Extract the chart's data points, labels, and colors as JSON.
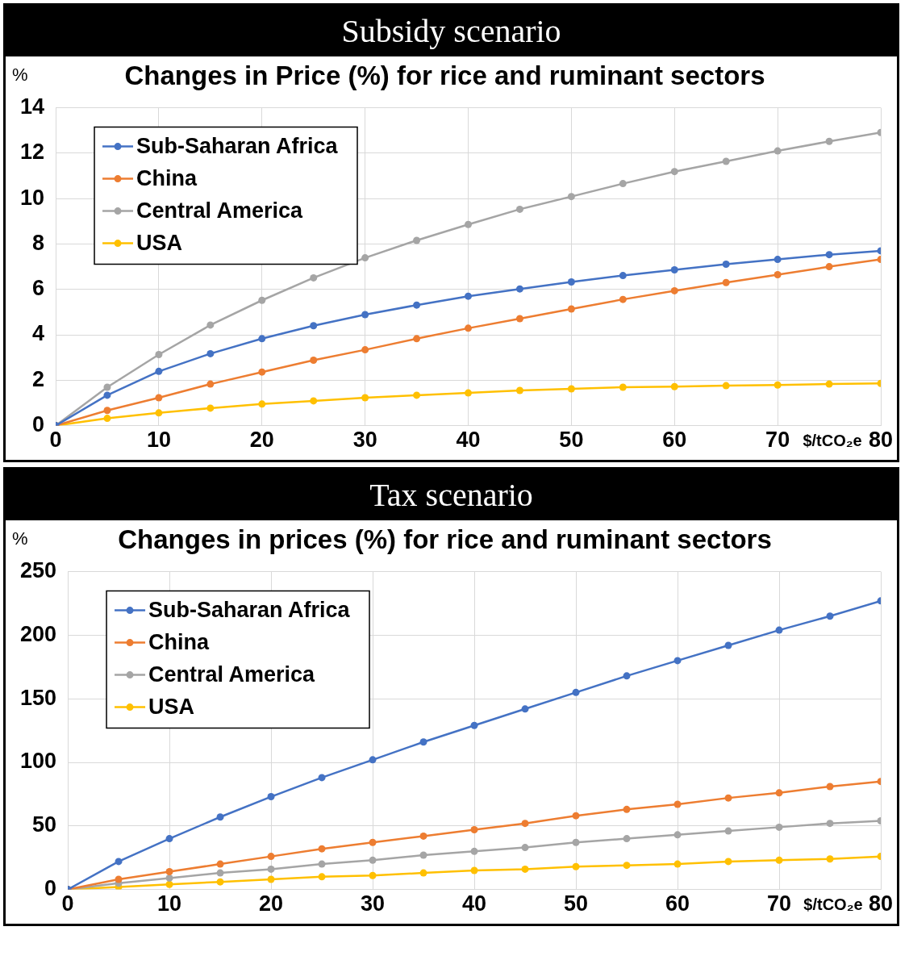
{
  "chart_data": [
    {
      "type": "line",
      "title": "Subsidy scenario",
      "subtitle": "Changes in Price (%) for rice and ruminant sectors",
      "xlabel": "$/tCO₂e",
      "ylabel": "%",
      "x": [
        0,
        5,
        10,
        15,
        20,
        25,
        30,
        35,
        40,
        45,
        50,
        55,
        60,
        65,
        70,
        75,
        80
      ],
      "xlim": [
        0,
        80
      ],
      "xticks": [
        0,
        10,
        20,
        30,
        40,
        50,
        60,
        70,
        80
      ],
      "ylim": [
        0,
        14
      ],
      "yticks": [
        0,
        2,
        4,
        6,
        8,
        10,
        12,
        14
      ],
      "grid": true,
      "legend": "top left",
      "marker": "circle",
      "line_style": "solid",
      "series": [
        {
          "name": "Sub-Saharan Africa",
          "color": "#4472c4",
          "values": [
            0,
            1.34,
            2.39,
            3.17,
            3.83,
            4.4,
            4.89,
            5.31,
            5.7,
            6.02,
            6.33,
            6.61,
            6.86,
            7.11,
            7.32,
            7.53,
            7.7
          ]
        },
        {
          "name": "China",
          "color": "#ed7d31",
          "values": [
            0,
            0.67,
            1.23,
            1.83,
            2.36,
            2.88,
            3.34,
            3.83,
            4.29,
            4.71,
            5.14,
            5.56,
            5.94,
            6.3,
            6.65,
            7.0,
            7.32
          ]
        },
        {
          "name": "Central America",
          "color": "#a5a5a5",
          "values": [
            0,
            1.69,
            3.13,
            4.43,
            5.52,
            6.51,
            7.39,
            8.16,
            8.86,
            9.53,
            10.09,
            10.66,
            11.19,
            11.64,
            12.1,
            12.52,
            12.91
          ]
        },
        {
          "name": "USA",
          "color": "#ffc000",
          "values": [
            0,
            0.32,
            0.56,
            0.77,
            0.95,
            1.09,
            1.23,
            1.34,
            1.44,
            1.55,
            1.62,
            1.69,
            1.72,
            1.76,
            1.79,
            1.83,
            1.86
          ]
        }
      ]
    },
    {
      "type": "line",
      "title": "Tax scenario",
      "subtitle": "Changes in prices (%) for rice and ruminant sectors",
      "xlabel": "$/tCO₂e",
      "ylabel": "%",
      "x": [
        0,
        5,
        10,
        15,
        20,
        25,
        30,
        35,
        40,
        45,
        50,
        55,
        60,
        65,
        70,
        75,
        80
      ],
      "xlim": [
        0,
        80
      ],
      "xticks": [
        0,
        10,
        20,
        30,
        40,
        50,
        60,
        70,
        80
      ],
      "ylim": [
        0,
        250
      ],
      "yticks": [
        0,
        50,
        100,
        150,
        200,
        250
      ],
      "grid": true,
      "legend": "top left",
      "marker": "circle",
      "line_style": "solid",
      "series": [
        {
          "name": "Sub-Saharan Africa",
          "color": "#4472c4",
          "values": [
            0,
            22,
            40,
            57,
            73,
            88,
            102,
            116,
            129,
            142,
            155,
            168,
            180,
            192,
            204,
            215,
            227
          ]
        },
        {
          "name": "China",
          "color": "#ed7d31",
          "values": [
            0,
            8,
            14,
            20,
            26,
            32,
            37,
            42,
            47,
            52,
            58,
            63,
            67,
            72,
            76,
            81,
            85
          ]
        },
        {
          "name": "Central America",
          "color": "#a5a5a5",
          "values": [
            0,
            5,
            9,
            13,
            16,
            20,
            23,
            27,
            30,
            33,
            37,
            40,
            43,
            46,
            49,
            52,
            54
          ]
        },
        {
          "name": "USA",
          "color": "#ffc000",
          "values": [
            0,
            2,
            4,
            6,
            8,
            10,
            11,
            13,
            15,
            16,
            18,
            19,
            20,
            22,
            23,
            24,
            26
          ]
        }
      ]
    }
  ]
}
